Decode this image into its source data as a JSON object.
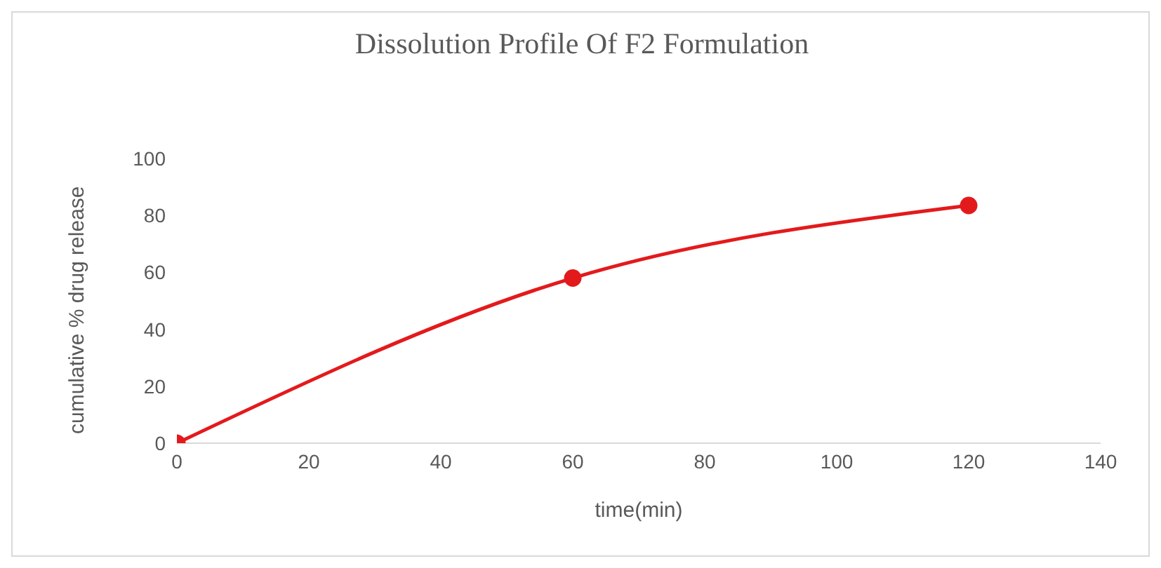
{
  "chart_data": {
    "type": "line",
    "title": "Dissolution Profile Of F2 Formulation",
    "xlabel": "time(min)",
    "ylabel": "cumulative % drug release",
    "x": [
      0,
      60,
      120
    ],
    "series": [
      {
        "color": "#e31a1c",
        "values": [
          0,
          58,
          83.5
        ]
      }
    ],
    "xlim": [
      0,
      140
    ],
    "xticks": [
      0,
      20,
      40,
      60,
      80,
      100,
      120,
      140
    ],
    "ylim": [
      0,
      100
    ],
    "yticks": [
      0,
      20,
      40,
      60,
      80,
      100
    ],
    "grid": false,
    "legend": false,
    "marker": "circle",
    "line_style": "solid"
  }
}
